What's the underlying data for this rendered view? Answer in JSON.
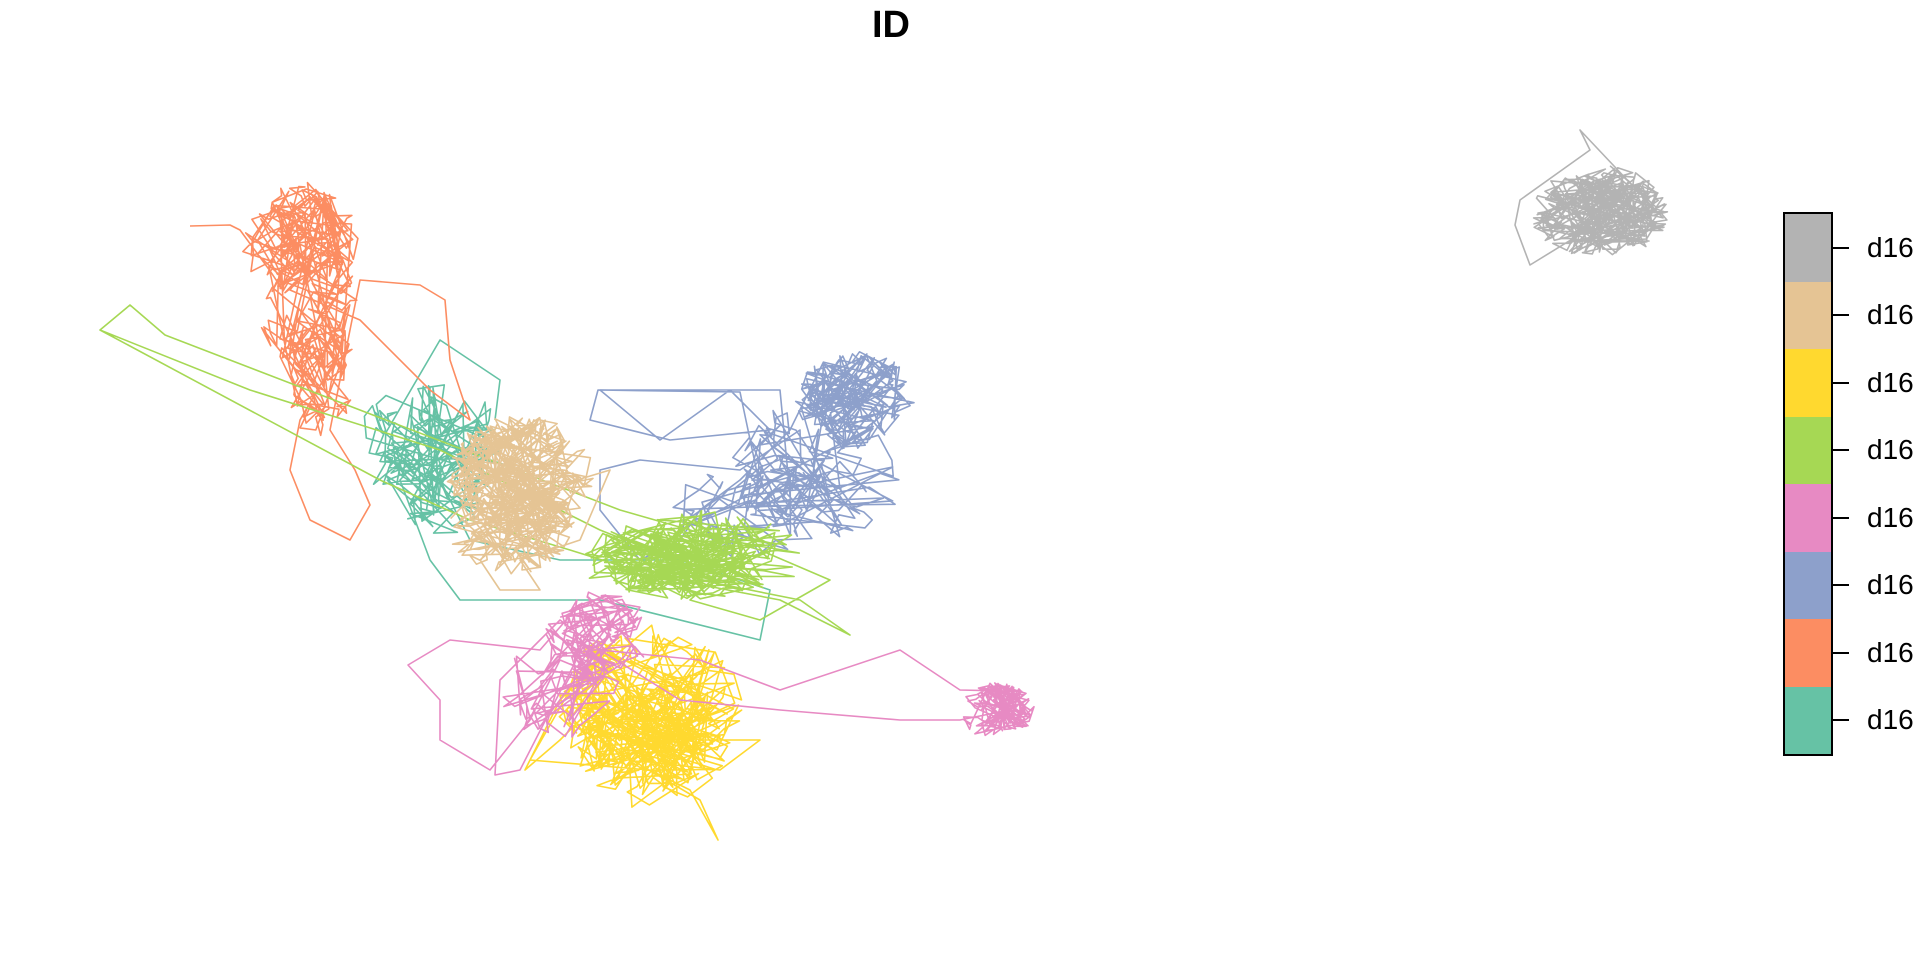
{
  "title": "ID",
  "colors": {
    "gray": "#b3b3b3",
    "tan": "#e5c494",
    "yellow": "#ffd92f",
    "green": "#a6d854",
    "pink": "#e78ac3",
    "blue": "#8da0cb",
    "orange": "#fc8d62",
    "teal": "#66c2a5"
  },
  "legend": {
    "items": [
      {
        "label": "d16",
        "color": "#b3b3b3",
        "icon": "gray-swatch"
      },
      {
        "label": "d16",
        "color": "#e5c494",
        "icon": "tan-swatch"
      },
      {
        "label": "d16",
        "color": "#ffd92f",
        "icon": "yellow-swatch"
      },
      {
        "label": "d16",
        "color": "#a6d854",
        "icon": "green-swatch"
      },
      {
        "label": "d16",
        "color": "#e78ac3",
        "icon": "pink-swatch"
      },
      {
        "label": "d16",
        "color": "#8da0cb",
        "icon": "blue-swatch"
      },
      {
        "label": "d16",
        "color": "#fc8d62",
        "icon": "orange-swatch"
      },
      {
        "label": "d16",
        "color": "#66c2a5",
        "icon": "teal-swatch"
      }
    ]
  }
}
